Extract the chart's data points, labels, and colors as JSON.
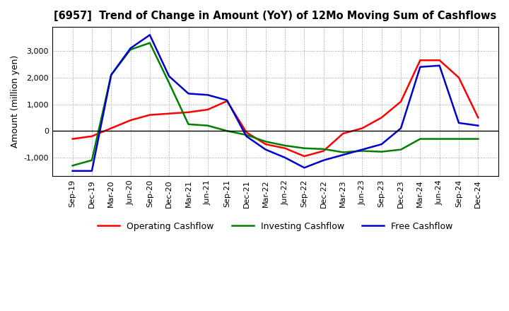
{
  "title": "[6957]  Trend of Change in Amount (YoY) of 12Mo Moving Sum of Cashflows",
  "ylabel": "Amount (million yen)",
  "x_labels": [
    "Sep-19",
    "Dec-19",
    "Mar-20",
    "Jun-20",
    "Sep-20",
    "Dec-20",
    "Mar-21",
    "Jun-21",
    "Sep-21",
    "Dec-21",
    "Mar-22",
    "Jun-22",
    "Sep-22",
    "Dec-22",
    "Mar-23",
    "Jun-23",
    "Sep-23",
    "Dec-23",
    "Mar-24",
    "Jun-24",
    "Sep-24",
    "Dec-24"
  ],
  "operating": [
    -300,
    -200,
    100,
    400,
    600,
    650,
    700,
    800,
    1120,
    -50,
    -500,
    -650,
    -950,
    -750,
    -100,
    100,
    500,
    1100,
    2650,
    2650,
    2000,
    500
  ],
  "investing": [
    -1300,
    -1100,
    2100,
    3050,
    3300,
    1800,
    250,
    200,
    0,
    -150,
    -400,
    -550,
    -650,
    -680,
    -800,
    -750,
    -780,
    -700,
    -300,
    -300,
    -300,
    -300
  ],
  "free": [
    -1500,
    -1500,
    2100,
    3100,
    3600,
    2050,
    1400,
    1350,
    1150,
    -200,
    -700,
    -1000,
    -1380,
    -1100,
    -900,
    -700,
    -500,
    100,
    2400,
    2450,
    300,
    200
  ],
  "operating_color": "#ff0000",
  "investing_color": "#008000",
  "free_color": "#0000cd",
  "ylim": [
    -1700,
    3900
  ],
  "yticks": [
    -1000,
    0,
    1000,
    2000,
    3000
  ],
  "background_color": "#ffffff",
  "grid_color": "#999999"
}
